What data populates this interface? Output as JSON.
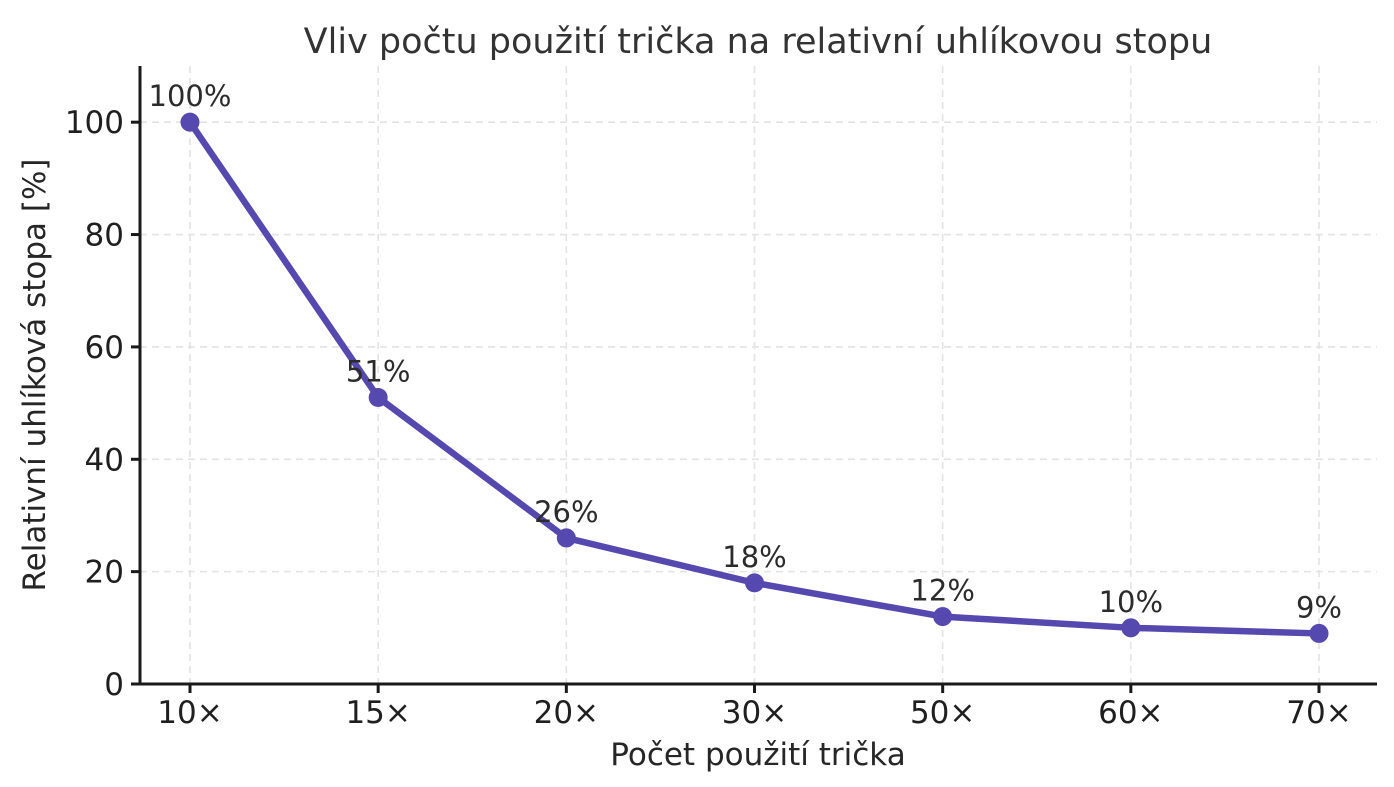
{
  "chart_data": {
    "type": "line",
    "title": "Vliv počtu použití trička na relativní uhlíkovou stopu",
    "xlabel": "Počet použití trička",
    "ylabel": "Relativní uhlíková stopa [%]",
    "categories": [
      "10×",
      "15×",
      "20×",
      "30×",
      "50×",
      "60×",
      "70×"
    ],
    "values": [
      100,
      51,
      26,
      18,
      12,
      10,
      9
    ],
    "point_labels": [
      "100%",
      "51%",
      "26%",
      "18%",
      "12%",
      "10%",
      "9%"
    ],
    "yticks": [
      0,
      20,
      40,
      60,
      80,
      100
    ],
    "ylim": [
      0,
      110
    ],
    "grid": "on",
    "grid_style": "dashed",
    "legend_position": "none",
    "colors": {
      "line": "#5548ae",
      "marker": "#5548ae",
      "grid": "#e3e3e3",
      "axis": "#1a1a1a",
      "background": "#ffffff"
    }
  }
}
